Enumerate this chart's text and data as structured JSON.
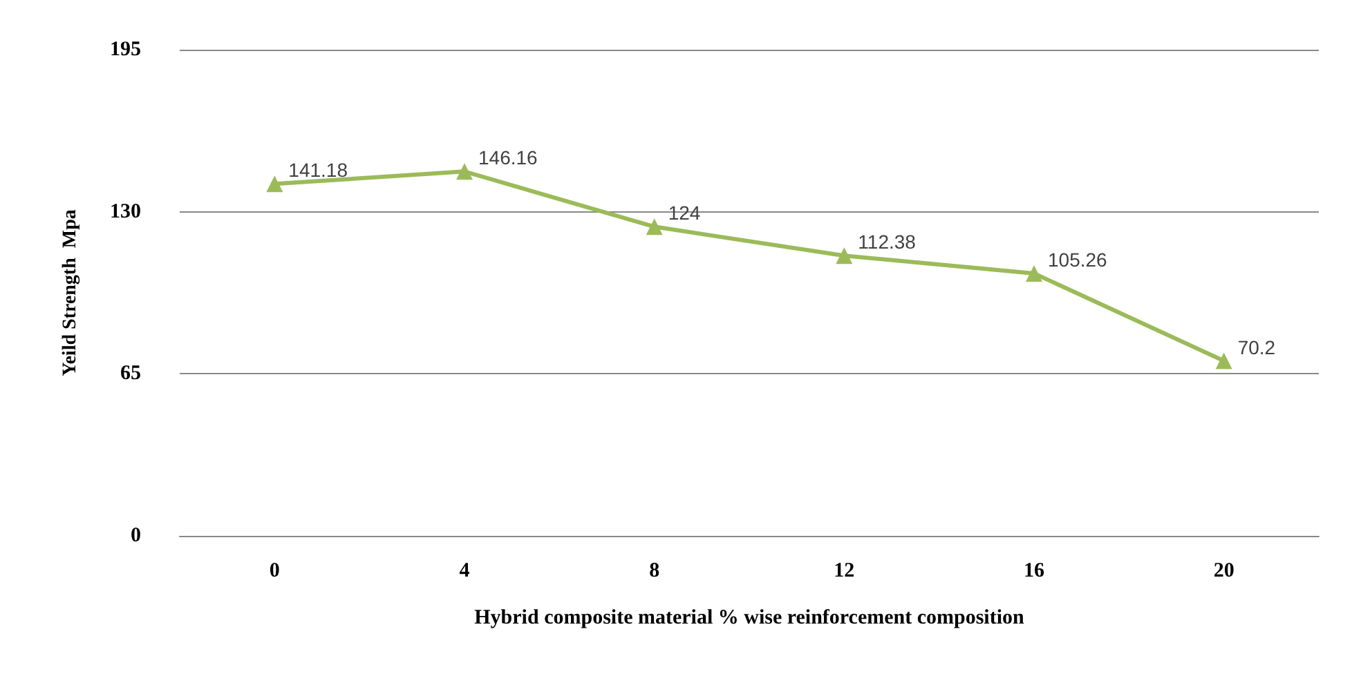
{
  "chart_data": {
    "type": "line",
    "xlabel": "Hybrid composite material % wise reinforcement composition",
    "ylabel": "Yeild Strength  Mpa",
    "categories": [
      "0",
      "4",
      "8",
      "12",
      "16",
      "20"
    ],
    "series": [
      {
        "color": "#9bbb59",
        "values": [
          141.18,
          146.16,
          124,
          112.38,
          105.26,
          70.2
        ]
      }
    ],
    "ylim": [
      0,
      195
    ],
    "yticks": [
      0,
      65,
      130,
      195
    ],
    "grid": "y",
    "marker": "triangle",
    "line_style": "solid",
    "data_labels": true
  }
}
